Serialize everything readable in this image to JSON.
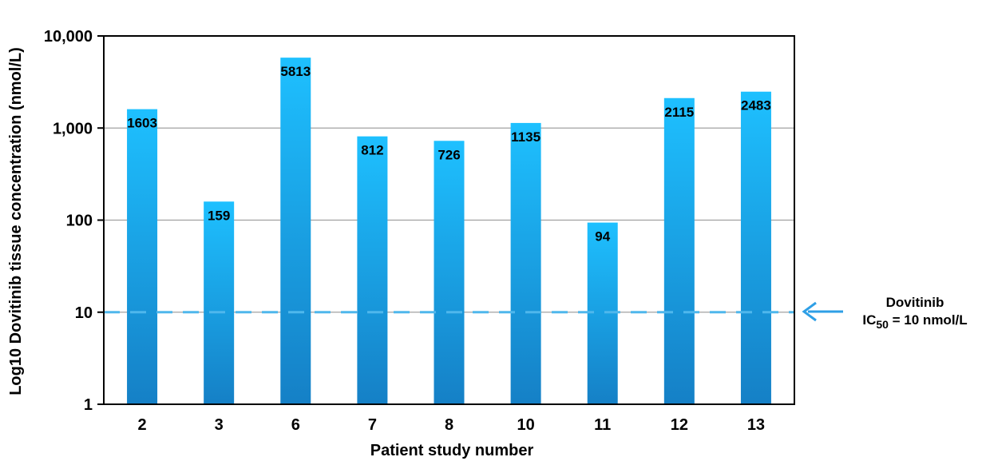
{
  "chart_data": {
    "type": "bar",
    "title": "",
    "xlabel": "Patient study number",
    "ylabel": "Log10 Dovitinib tissue concentration (nmol/L)",
    "yscale": "log",
    "ylim": [
      1,
      10000
    ],
    "yticks": [
      {
        "value": 1,
        "label": "1"
      },
      {
        "value": 10,
        "label": "10"
      },
      {
        "value": 100,
        "label": "100"
      },
      {
        "value": 1000,
        "label": "1,000"
      },
      {
        "value": 10000,
        "label": "10,000"
      }
    ],
    "grid": true,
    "categories": [
      "2",
      "3",
      "6",
      "7",
      "8",
      "10",
      "11",
      "12",
      "13"
    ],
    "values": [
      1603,
      159,
      5813,
      812,
      726,
      1135,
      94,
      2115,
      2483
    ],
    "data_labels": [
      "1603",
      "159",
      "5813",
      "812",
      "726",
      "1135",
      "94",
      "2115",
      "2483"
    ],
    "reference_line": {
      "value": 10,
      "style": "dashed",
      "annotation_line1": "Dovitinib",
      "annotation_ic": "IC",
      "annotation_sub": "50",
      "annotation_rest": " = 10 nmol/L"
    },
    "colors": {
      "bar_top": "#1ec0ff",
      "bar_bottom": "#1580c6",
      "reference_line": "#4fb7ec",
      "arrow": "#2e9fe6",
      "grid": "#a0a0a0",
      "axis": "#000000"
    }
  }
}
